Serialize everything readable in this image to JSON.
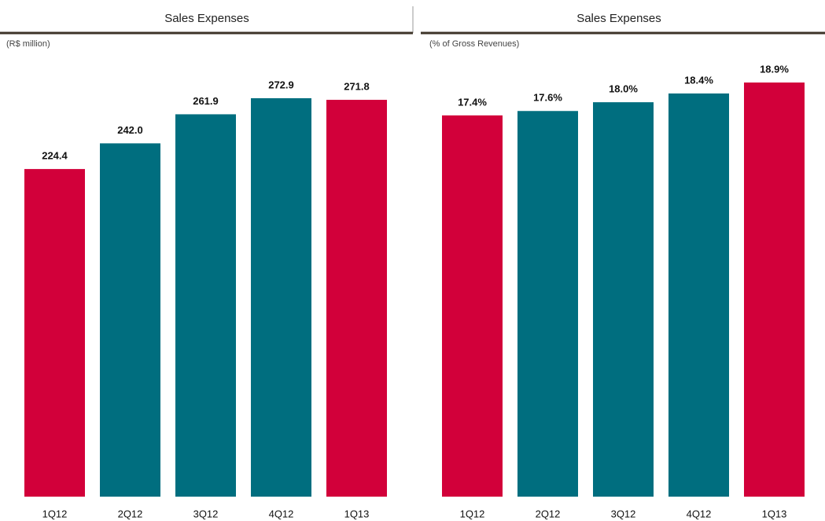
{
  "chart_data": [
    {
      "type": "bar",
      "title": "Sales Expenses",
      "subtitle": "(R$ million)",
      "categories": [
        "1Q12",
        "2Q12",
        "3Q12",
        "4Q12",
        "1Q13"
      ],
      "values": [
        224.4,
        242.0,
        261.9,
        272.9,
        271.8
      ],
      "value_labels": [
        "224.4",
        "242.0",
        "261.9",
        "272.9",
        "271.8"
      ],
      "colors": [
        "#d2003a",
        "#006e7f",
        "#006e7f",
        "#006e7f",
        "#d2003a"
      ]
    },
    {
      "type": "bar",
      "title": "Sales Expenses",
      "subtitle": "(% of Gross Revenues)",
      "categories": [
        "1Q12",
        "2Q12",
        "3Q12",
        "4Q12",
        "1Q13"
      ],
      "values": [
        17.4,
        17.6,
        18.0,
        18.4,
        18.9
      ],
      "value_labels": [
        "17.4%",
        "17.6%",
        "18.0%",
        "18.4%",
        "18.9%"
      ],
      "colors": [
        "#d2003a",
        "#006e7f",
        "#006e7f",
        "#006e7f",
        "#d2003a"
      ]
    }
  ]
}
